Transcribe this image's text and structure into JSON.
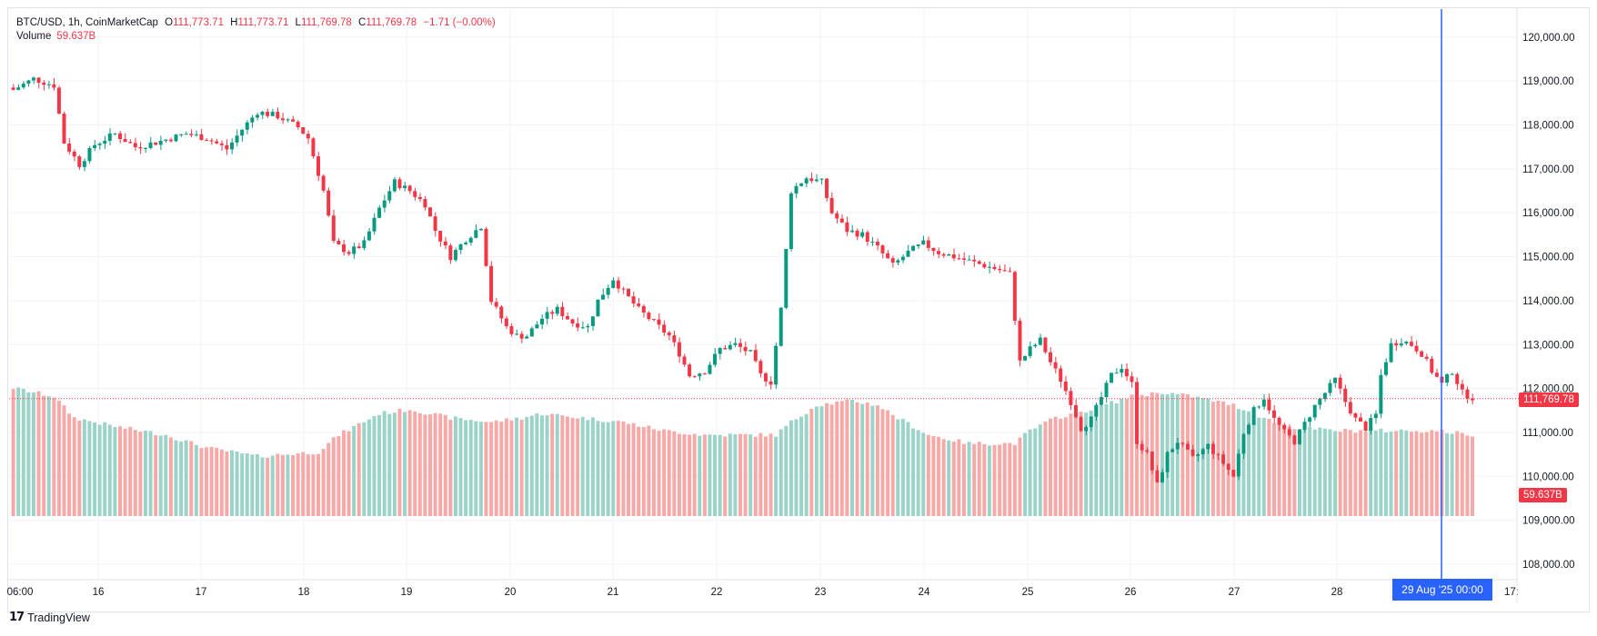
{
  "legend": {
    "symbol": "BTC/USD, 1h, CoinMarketCap",
    "open_label": "O",
    "open": "111,773.71",
    "high_label": "H",
    "high": "111,773.71",
    "low_label": "L",
    "low": "111,769.78",
    "close_label": "C",
    "close": "111,769.78",
    "change": "−1.71 (−0.00%)",
    "volume_label": "Volume",
    "volume": "59.637B"
  },
  "price_tag": "111,769.78",
  "volume_tag": "59.637B",
  "crosshair_time": "29 Aug '25   00:00",
  "watermark": "TradingView",
  "colors": {
    "up": "#089981",
    "down": "#f23645",
    "vol_up": "#9cd3c8",
    "vol_down": "#f7a9a7",
    "crosshair": "#2962ff"
  },
  "chart_data": {
    "type": "candlestick",
    "y_ticks": [
      "108,000.00",
      "109,000.00",
      "110,000.00",
      "111,000.00",
      "112,000.00",
      "113,000.00",
      "114,000.00",
      "115,000.00",
      "116,000.00",
      "117,000.00",
      "118,000.00",
      "119,000.00",
      "120,000.00"
    ],
    "ylim": [
      107800,
      120500
    ],
    "x_ticks": [
      "06:00",
      "16",
      "17",
      "18",
      "19",
      "20",
      "21",
      "22",
      "23",
      "24",
      "25",
      "26",
      "27",
      "28",
      "17:"
    ],
    "last_price": 111769.78,
    "close_path": [
      [
        0,
        118800
      ],
      [
        4,
        119050
      ],
      [
        8,
        118900
      ],
      [
        10,
        117600
      ],
      [
        13,
        117100
      ],
      [
        16,
        117550
      ],
      [
        20,
        117800
      ],
      [
        24,
        117500
      ],
      [
        28,
        117600
      ],
      [
        34,
        117800
      ],
      [
        38,
        117700
      ],
      [
        42,
        117450
      ],
      [
        45,
        117900
      ],
      [
        48,
        118300
      ],
      [
        52,
        118200
      ],
      [
        56,
        117950
      ],
      [
        58,
        117700
      ],
      [
        61,
        116500
      ],
      [
        63,
        115300
      ],
      [
        66,
        115100
      ],
      [
        69,
        115300
      ],
      [
        72,
        116100
      ],
      [
        75,
        116700
      ],
      [
        78,
        116500
      ],
      [
        81,
        116200
      ],
      [
        83,
        115600
      ],
      [
        86,
        115000
      ],
      [
        89,
        115400
      ],
      [
        92,
        115700
      ],
      [
        94,
        114000
      ],
      [
        97,
        113400
      ],
      [
        99,
        113200
      ],
      [
        101,
        113200
      ],
      [
        104,
        113600
      ],
      [
        107,
        113800
      ],
      [
        110,
        113500
      ],
      [
        113,
        113400
      ],
      [
        115,
        114000
      ],
      [
        118,
        114500
      ],
      [
        120,
        114200
      ],
      [
        123,
        113800
      ],
      [
        126,
        113500
      ],
      [
        129,
        113200
      ],
      [
        131,
        112800
      ],
      [
        133,
        112300
      ],
      [
        136,
        112400
      ],
      [
        139,
        112900
      ],
      [
        142,
        113000
      ],
      [
        145,
        112800
      ],
      [
        147,
        112300
      ],
      [
        149,
        112150
      ],
      [
        151,
        113800
      ],
      [
        153,
        116500
      ],
      [
        156,
        116800
      ],
      [
        159,
        116700
      ],
      [
        161,
        116000
      ],
      [
        164,
        115600
      ],
      [
        167,
        115500
      ],
      [
        170,
        115200
      ],
      [
        173,
        114800
      ],
      [
        176,
        115100
      ],
      [
        179,
        115300
      ],
      [
        182,
        115100
      ],
      [
        185,
        115000
      ],
      [
        188,
        114900
      ],
      [
        191,
        114800
      ],
      [
        194,
        114700
      ],
      [
        196,
        114600
      ],
      [
        198,
        112600
      ],
      [
        200,
        112900
      ],
      [
        202,
        113100
      ],
      [
        204,
        112600
      ],
      [
        206,
        112200
      ],
      [
        208,
        111700
      ],
      [
        210,
        111100
      ],
      [
        212,
        111300
      ],
      [
        214,
        111800
      ],
      [
        216,
        112300
      ],
      [
        218,
        112500
      ],
      [
        220,
        112100
      ],
      [
        221,
        110800
      ],
      [
        223,
        110500
      ],
      [
        225,
        109800
      ],
      [
        227,
        110500
      ],
      [
        229,
        110800
      ],
      [
        232,
        110400
      ],
      [
        235,
        110700
      ],
      [
        238,
        110300
      ],
      [
        240,
        110000
      ],
      [
        242,
        111000
      ],
      [
        244,
        111500
      ],
      [
        246,
        111800
      ],
      [
        248,
        111300
      ],
      [
        250,
        111000
      ],
      [
        252,
        110800
      ],
      [
        254,
        111200
      ],
      [
        256,
        111600
      ],
      [
        258,
        111900
      ],
      [
        260,
        112200
      ],
      [
        262,
        111700
      ],
      [
        264,
        111300
      ],
      [
        266,
        111100
      ],
      [
        268,
        111400
      ],
      [
        269,
        112300
      ],
      [
        271,
        113000
      ],
      [
        273,
        113100
      ],
      [
        275,
        113000
      ],
      [
        277,
        112800
      ],
      [
        279,
        112400
      ],
      [
        281,
        112100
      ],
      [
        283,
        112400
      ],
      [
        285,
        111900
      ],
      [
        287,
        111800
      ]
    ],
    "volume_path": [
      [
        0,
        0.3
      ],
      [
        8,
        0.28
      ],
      [
        12,
        0.23
      ],
      [
        20,
        0.21
      ],
      [
        30,
        0.19
      ],
      [
        38,
        0.16
      ],
      [
        48,
        0.14
      ],
      [
        60,
        0.15
      ],
      [
        64,
        0.19
      ],
      [
        72,
        0.24
      ],
      [
        78,
        0.25
      ],
      [
        86,
        0.23
      ],
      [
        94,
        0.22
      ],
      [
        100,
        0.23
      ],
      [
        104,
        0.24
      ],
      [
        112,
        0.23
      ],
      [
        120,
        0.22
      ],
      [
        128,
        0.2
      ],
      [
        136,
        0.19
      ],
      [
        144,
        0.19
      ],
      [
        150,
        0.19
      ],
      [
        153,
        0.22
      ],
      [
        158,
        0.26
      ],
      [
        165,
        0.27
      ],
      [
        170,
        0.26
      ],
      [
        174,
        0.23
      ],
      [
        180,
        0.19
      ],
      [
        188,
        0.17
      ],
      [
        197,
        0.17
      ],
      [
        200,
        0.2
      ],
      [
        205,
        0.23
      ],
      [
        212,
        0.25
      ],
      [
        220,
        0.28
      ],
      [
        226,
        0.29
      ],
      [
        232,
        0.28
      ],
      [
        240,
        0.26
      ],
      [
        244,
        0.24
      ],
      [
        250,
        0.21
      ],
      [
        260,
        0.2
      ],
      [
        270,
        0.2
      ],
      [
        280,
        0.2
      ],
      [
        287,
        0.19
      ]
    ]
  }
}
